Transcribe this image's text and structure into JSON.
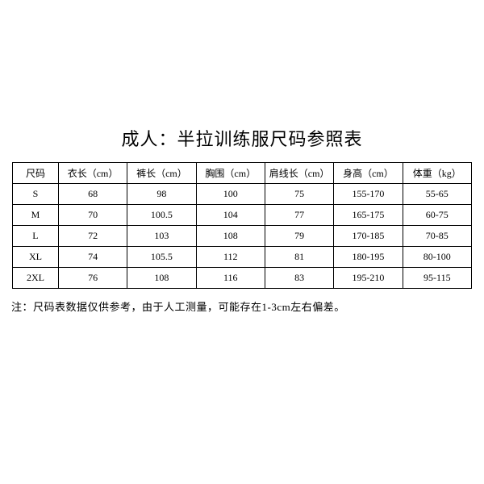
{
  "title": "成人：半拉训练服尺码参照表",
  "table": {
    "type": "table",
    "background_color": "#ffffff",
    "border_color": "#000000",
    "text_color": "#000000",
    "header_fontsize": 12,
    "cell_fontsize": 12,
    "columns": [
      "尺码",
      "衣长（cm）",
      "裤长（cm）",
      "胸围（cm）",
      "肩线长（cm）",
      "身高（cm）",
      "体重（kg）"
    ],
    "rows": [
      [
        "S",
        "68",
        "98",
        "100",
        "75",
        "155-170",
        "55-65"
      ],
      [
        "M",
        "70",
        "100.5",
        "104",
        "77",
        "165-175",
        "60-75"
      ],
      [
        "L",
        "72",
        "103",
        "108",
        "79",
        "170-185",
        "70-85"
      ],
      [
        "XL",
        "74",
        "105.5",
        "112",
        "81",
        "180-195",
        "80-100"
      ],
      [
        "2XL",
        "76",
        "108",
        "116",
        "83",
        "195-210",
        "95-115"
      ]
    ]
  },
  "note": "注：尺码表数据仅供参考，由于人工测量，可能存在1-3cm左右偏差。"
}
